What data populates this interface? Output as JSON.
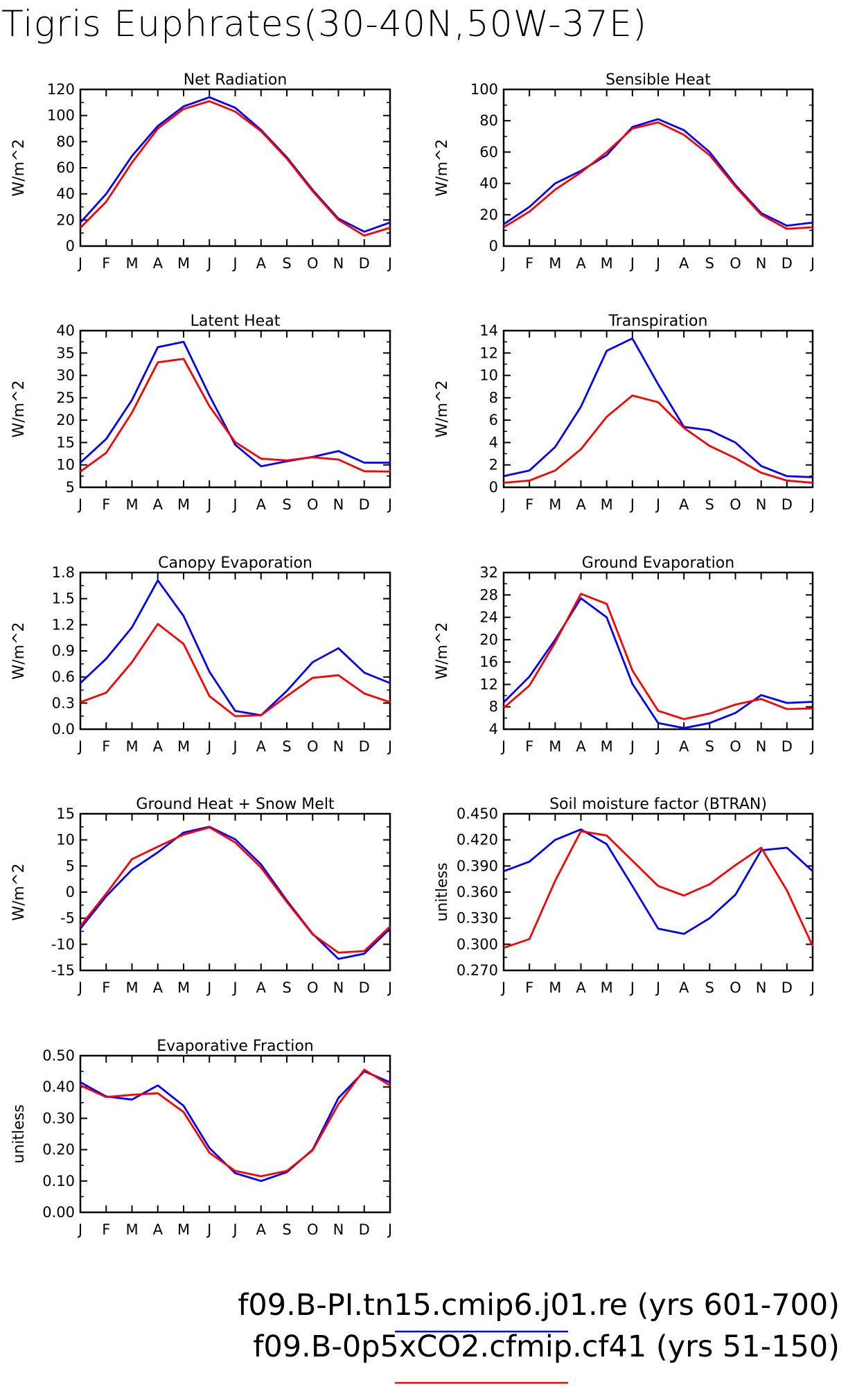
{
  "title": "Tigris Euphrates(30-40N,50W-37E)",
  "colors": {
    "run1": "#0000ff",
    "run2": "#ff0000"
  },
  "legend": [
    {
      "label": "f09.B-PI.tn15.cmip6.j01.re (yrs 601-700)",
      "color": "#0000ff"
    },
    {
      "label": "f09.B-0p5xCO2.cfmip.cf41 (yrs 51-150)",
      "color": "#ff0000"
    }
  ],
  "chart_data": [
    {
      "type": "line",
      "title": "Net Radiation",
      "ylabel": "W/m^2",
      "categories": [
        "J",
        "F",
        "M",
        "A",
        "M",
        "J",
        "J",
        "A",
        "S",
        "O",
        "N",
        "D",
        "J"
      ],
      "ylim": [
        0,
        120
      ],
      "yticks": [
        "0",
        "20",
        "40",
        "60",
        "80",
        "100",
        "120"
      ],
      "series": [
        {
          "values": [
            18,
            40,
            69,
            92,
            107,
            114,
            106,
            89,
            68,
            43,
            21,
            11,
            18
          ],
          "color": "#0000ff"
        },
        {
          "values": [
            14,
            34,
            64,
            90,
            105,
            111,
            103,
            88,
            67,
            42,
            20,
            8,
            14
          ],
          "color": "#ff0000"
        }
      ]
    },
    {
      "type": "line",
      "title": "Sensible Heat",
      "ylabel": "W/m^2",
      "categories": [
        "J",
        "F",
        "M",
        "A",
        "M",
        "J",
        "J",
        "A",
        "S",
        "O",
        "N",
        "D",
        "J"
      ],
      "ylim": [
        0,
        100
      ],
      "yticks": [
        "0",
        "20",
        "40",
        "60",
        "80",
        "100"
      ],
      "series": [
        {
          "values": [
            14,
            25,
            40,
            48,
            58,
            76,
            81,
            74,
            60,
            39,
            21,
            13,
            15
          ],
          "color": "#0000ff"
        },
        {
          "values": [
            12,
            22,
            36,
            47,
            60,
            75,
            79,
            71,
            58,
            38,
            20,
            11,
            12
          ],
          "color": "#ff0000"
        }
      ]
    },
    {
      "type": "line",
      "title": "Latent Heat",
      "ylabel": "W/m^2",
      "categories": [
        "J",
        "F",
        "M",
        "A",
        "M",
        "J",
        "J",
        "A",
        "S",
        "O",
        "N",
        "D",
        "J"
      ],
      "ylim": [
        5,
        40
      ],
      "yticks": [
        "5",
        "10",
        "15",
        "20",
        "25",
        "30",
        "35",
        "40"
      ],
      "series": [
        {
          "values": [
            10.5,
            15.8,
            24.5,
            36.3,
            37.5,
            25.5,
            14.5,
            9.7,
            10.8,
            11.8,
            13.1,
            10.5,
            10.5
          ],
          "color": "#0000ff"
        },
        {
          "values": [
            8.5,
            12.7,
            21.7,
            32.9,
            33.7,
            23.1,
            15.1,
            11.4,
            11.0,
            11.7,
            11.2,
            8.6,
            8.5
          ],
          "color": "#ff0000"
        }
      ]
    },
    {
      "type": "line",
      "title": "Transpiration",
      "ylabel": "W/m^2",
      "categories": [
        "J",
        "F",
        "M",
        "A",
        "M",
        "J",
        "J",
        "A",
        "S",
        "O",
        "N",
        "D",
        "J"
      ],
      "ylim": [
        0,
        14
      ],
      "yticks": [
        "0",
        "2",
        "4",
        "6",
        "8",
        "10",
        "12",
        "14"
      ],
      "series": [
        {
          "values": [
            1.0,
            1.5,
            3.6,
            7.2,
            12.2,
            13.3,
            9.2,
            5.4,
            5.1,
            4.0,
            1.9,
            1.0,
            0.9
          ],
          "color": "#0000ff"
        },
        {
          "values": [
            0.4,
            0.6,
            1.5,
            3.4,
            6.3,
            8.2,
            7.6,
            5.3,
            3.7,
            2.6,
            1.3,
            0.6,
            0.4
          ],
          "color": "#ff0000"
        }
      ]
    },
    {
      "type": "line",
      "title": "Canopy Evaporation",
      "ylabel": "W/m^2",
      "categories": [
        "J",
        "F",
        "M",
        "A",
        "M",
        "J",
        "J",
        "A",
        "S",
        "O",
        "N",
        "D",
        "J"
      ],
      "ylim": [
        0.0,
        1.8
      ],
      "yticks": [
        "0.0",
        "0.3",
        "0.6",
        "0.9",
        "1.2",
        "1.5",
        "1.8"
      ],
      "series": [
        {
          "values": [
            0.53,
            0.81,
            1.17,
            1.71,
            1.3,
            0.66,
            0.21,
            0.16,
            0.44,
            0.77,
            0.93,
            0.65,
            0.53
          ],
          "color": "#0000ff"
        },
        {
          "values": [
            0.31,
            0.42,
            0.77,
            1.21,
            0.98,
            0.38,
            0.15,
            0.16,
            0.38,
            0.59,
            0.62,
            0.41,
            0.31
          ],
          "color": "#ff0000"
        }
      ]
    },
    {
      "type": "line",
      "title": "Ground Evaporation",
      "ylabel": "W/m^2",
      "categories": [
        "J",
        "F",
        "M",
        "A",
        "M",
        "J",
        "J",
        "A",
        "S",
        "O",
        "N",
        "D",
        "J"
      ],
      "ylim": [
        4,
        32
      ],
      "yticks": [
        "4",
        "8",
        "12",
        "16",
        "20",
        "24",
        "28",
        "32"
      ],
      "series": [
        {
          "values": [
            8.8,
            13.4,
            20.0,
            27.4,
            24.0,
            12.1,
            5.1,
            4.2,
            5.1,
            6.9,
            10.1,
            8.7,
            8.9
          ],
          "color": "#0000ff"
        },
        {
          "values": [
            7.8,
            11.8,
            19.5,
            28.2,
            26.4,
            14.5,
            7.3,
            5.8,
            6.8,
            8.4,
            9.4,
            7.6,
            7.7
          ],
          "color": "#ff0000"
        }
      ]
    },
    {
      "type": "line",
      "title": "Ground Heat + Snow Melt",
      "ylabel": "W/m^2",
      "categories": [
        "J",
        "F",
        "M",
        "A",
        "M",
        "J",
        "J",
        "A",
        "S",
        "O",
        "N",
        "D",
        "J"
      ],
      "ylim": [
        -15,
        15
      ],
      "yticks": [
        "-15",
        "-10",
        "-5",
        "0",
        "5",
        "10",
        "15"
      ],
      "series": [
        {
          "values": [
            -7.0,
            -0.8,
            4.3,
            7.6,
            11.4,
            12.5,
            10.1,
            5.3,
            -1.6,
            -8.0,
            -12.8,
            -11.8,
            -7.0
          ],
          "color": "#0000ff"
        },
        {
          "values": [
            -6.5,
            -0.3,
            6.3,
            8.7,
            11.0,
            12.4,
            9.5,
            4.7,
            -1.9,
            -8.1,
            -11.6,
            -11.3,
            -6.6
          ],
          "color": "#ff0000"
        }
      ]
    },
    {
      "type": "line",
      "title": "Soil moisture factor (BTRAN)",
      "ylabel": "unitless",
      "categories": [
        "J",
        "F",
        "M",
        "A",
        "M",
        "J",
        "J",
        "A",
        "S",
        "O",
        "N",
        "D",
        "J"
      ],
      "ylim": [
        0.27,
        0.45
      ],
      "yticks": [
        "0.270",
        "0.300",
        "0.330",
        "0.360",
        "0.390",
        "0.420",
        "0.450"
      ],
      "series": [
        {
          "values": [
            0.384,
            0.395,
            0.42,
            0.432,
            0.415,
            0.367,
            0.318,
            0.312,
            0.33,
            0.357,
            0.408,
            0.411,
            0.384
          ],
          "color": "#0000ff"
        },
        {
          "values": [
            0.296,
            0.306,
            0.373,
            0.43,
            0.425,
            0.396,
            0.367,
            0.356,
            0.369,
            0.391,
            0.411,
            0.362,
            0.298
          ],
          "color": "#ff0000"
        }
      ]
    },
    {
      "type": "line",
      "title": "Evaporative Fraction",
      "ylabel": "unitless",
      "categories": [
        "J",
        "F",
        "M",
        "A",
        "M",
        "J",
        "J",
        "A",
        "S",
        "O",
        "N",
        "D",
        "J"
      ],
      "ylim": [
        0.0,
        0.5
      ],
      "yticks": [
        "0.00",
        "0.10",
        "0.20",
        "0.30",
        "0.40",
        "0.50"
      ],
      "series": [
        {
          "values": [
            0.415,
            0.37,
            0.36,
            0.405,
            0.34,
            0.205,
            0.125,
            0.1,
            0.128,
            0.2,
            0.365,
            0.45,
            0.415
          ],
          "color": "#0000ff"
        },
        {
          "values": [
            0.405,
            0.368,
            0.375,
            0.38,
            0.32,
            0.19,
            0.132,
            0.115,
            0.132,
            0.198,
            0.345,
            0.455,
            0.405
          ],
          "color": "#ff0000"
        }
      ]
    }
  ]
}
